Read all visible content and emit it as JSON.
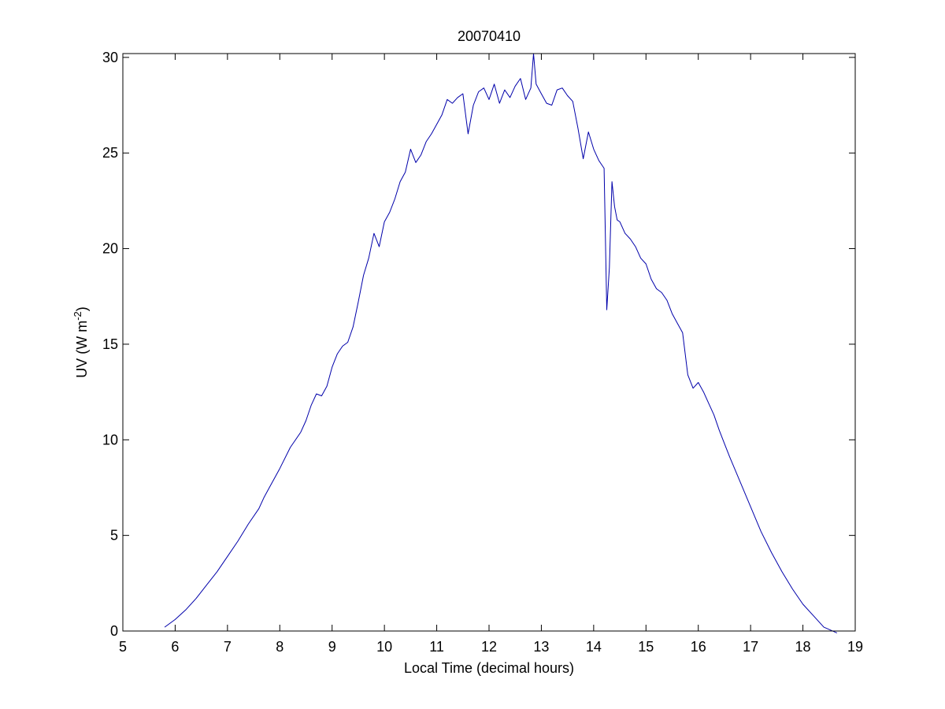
{
  "chart_data": {
    "type": "line",
    "title": "20070410",
    "xlabel": "Local Time (decimal hours)",
    "ylabel_prefix": "UV (W m",
    "ylabel_sup": "-2",
    "ylabel_suffix": ")",
    "xlim": [
      5,
      19
    ],
    "ylim": [
      0,
      30.2
    ],
    "xticks": [
      5,
      6,
      7,
      8,
      9,
      10,
      11,
      12,
      13,
      14,
      15,
      16,
      17,
      18,
      19
    ],
    "yticks": [
      0,
      5,
      10,
      15,
      20,
      25,
      30
    ],
    "grid": false,
    "line_color": "#0000aa",
    "series": [
      {
        "x": [
          5.8,
          6.0,
          6.2,
          6.4,
          6.6,
          6.8,
          7.0,
          7.2,
          7.4,
          7.6,
          7.7,
          7.8,
          8.0,
          8.2,
          8.4,
          8.5,
          8.6,
          8.7,
          8.8,
          8.9,
          9.0,
          9.1,
          9.2,
          9.3,
          9.4,
          9.5,
          9.6,
          9.7,
          9.8,
          9.9,
          10.0,
          10.1,
          10.2,
          10.3,
          10.4,
          10.5,
          10.6,
          10.7,
          10.8,
          10.9,
          11.0,
          11.1,
          11.2,
          11.3,
          11.4,
          11.5,
          11.6,
          11.7,
          11.8,
          11.9,
          12.0,
          12.1,
          12.2,
          12.3,
          12.4,
          12.5,
          12.6,
          12.7,
          12.8,
          12.85,
          12.9,
          13.0,
          13.1,
          13.2,
          13.3,
          13.4,
          13.5,
          13.6,
          13.7,
          13.8,
          13.9,
          14.0,
          14.1,
          14.2,
          14.25,
          14.3,
          14.35,
          14.4,
          14.45,
          14.5,
          14.6,
          14.7,
          14.8,
          14.9,
          15.0,
          15.1,
          15.2,
          15.3,
          15.4,
          15.5,
          15.6,
          15.7,
          15.8,
          15.9,
          16.0,
          16.1,
          16.2,
          16.3,
          16.4,
          16.5,
          16.6,
          16.8,
          17.0,
          17.2,
          17.4,
          17.6,
          17.8,
          18.0,
          18.2,
          18.4,
          18.65
        ],
        "y": [
          0.2,
          0.6,
          1.1,
          1.7,
          2.4,
          3.1,
          3.9,
          4.7,
          5.6,
          6.4,
          7.0,
          7.5,
          8.5,
          9.6,
          10.4,
          11.0,
          11.8,
          12.4,
          12.3,
          12.8,
          13.8,
          14.5,
          14.9,
          15.1,
          15.9,
          17.2,
          18.6,
          19.5,
          20.8,
          20.1,
          21.4,
          21.9,
          22.6,
          23.5,
          24.0,
          25.2,
          24.5,
          24.9,
          25.6,
          26.0,
          26.5,
          27.0,
          27.8,
          27.6,
          27.9,
          28.1,
          26.0,
          27.5,
          28.2,
          28.4,
          27.8,
          28.6,
          27.6,
          28.3,
          27.9,
          28.5,
          28.9,
          27.8,
          28.4,
          30.2,
          28.6,
          28.1,
          27.6,
          27.5,
          28.3,
          28.4,
          28.0,
          27.7,
          26.3,
          24.7,
          26.1,
          25.2,
          24.6,
          24.2,
          16.8,
          19.0,
          23.5,
          22.2,
          21.5,
          21.4,
          20.8,
          20.5,
          20.1,
          19.5,
          19.2,
          18.4,
          17.9,
          17.7,
          17.3,
          16.6,
          16.1,
          15.6,
          13.4,
          12.7,
          13.0,
          12.5,
          11.9,
          11.3,
          10.5,
          9.8,
          9.1,
          7.8,
          6.5,
          5.2,
          4.1,
          3.1,
          2.2,
          1.4,
          0.8,
          0.2,
          -0.1
        ]
      }
    ]
  }
}
